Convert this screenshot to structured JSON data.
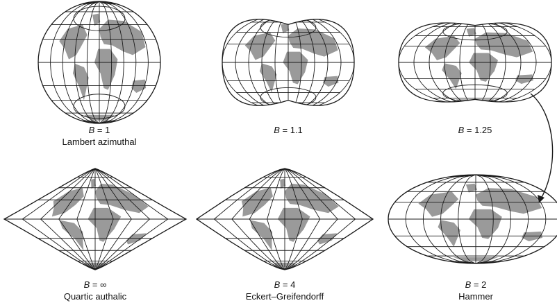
{
  "figure": {
    "panels": [
      {
        "b_label": "B",
        "b_value": "1",
        "name": "Lambert azimuthal",
        "shape": "circle"
      },
      {
        "b_label": "B",
        "b_value": "1.1",
        "name": "",
        "shape": "b1_1"
      },
      {
        "b_label": "B",
        "b_value": "1.25",
        "name": "",
        "shape": "b1_25"
      },
      {
        "b_label": "B",
        "b_value": "∞",
        "name": "Quartic authalic",
        "shape": "pointed_wide"
      },
      {
        "b_label": "B",
        "b_value": "4",
        "name": "Eckert–Greifendorff",
        "shape": "pointed"
      },
      {
        "b_label": "B",
        "b_value": "2",
        "name": "Hammer",
        "shape": "ellipse"
      }
    ],
    "colors": {
      "line": "#1a1a1a",
      "land": "#9a9a9a",
      "background": "#ffffff"
    }
  }
}
